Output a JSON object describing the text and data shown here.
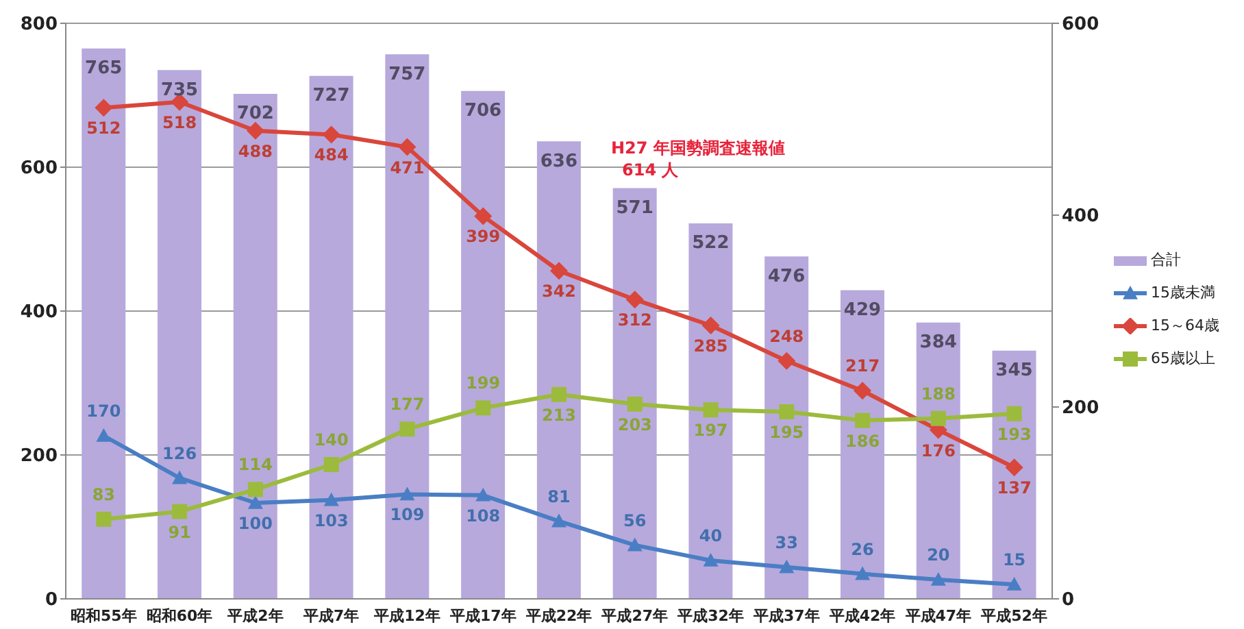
{
  "chart_data": {
    "type": "bar",
    "categories": [
      "昭和55年",
      "昭和60年",
      "平成2年",
      "平成7年",
      "平成12年",
      "平成17年",
      "平成22年",
      "平成27年",
      "平成32年",
      "平成37年",
      "平成42年",
      "平成47年",
      "平成52年"
    ],
    "series": [
      {
        "name": "合計",
        "color": "#b7a9dc",
        "values": [
          765,
          735,
          702,
          727,
          757,
          706,
          636,
          571,
          522,
          476,
          429,
          384,
          345
        ]
      },
      {
        "name": "15歳未満",
        "type": "line",
        "axis": "y2",
        "marker": "triangle",
        "color": "#4a7ec4",
        "values": [
          170,
          126,
          100,
          103,
          109,
          108,
          81,
          56,
          40,
          33,
          26,
          20,
          15
        ]
      },
      {
        "name": "15～64歳",
        "type": "line",
        "axis": "y2",
        "marker": "diamond",
        "color": "#d9463b",
        "values": [
          512,
          518,
          488,
          484,
          471,
          399,
          342,
          312,
          285,
          248,
          217,
          176,
          137
        ]
      },
      {
        "name": "65歳以上",
        "type": "line",
        "axis": "y2",
        "marker": "square",
        "color": "#9cbb3c",
        "values": [
          83,
          91,
          114,
          140,
          177,
          199,
          213,
          203,
          197,
          195,
          186,
          188,
          193
        ]
      }
    ],
    "ylim": [
      0,
      800
    ],
    "yticks": [
      0,
      200,
      400,
      600,
      800
    ],
    "y2lim": [
      0,
      600
    ],
    "y2ticks": [
      0,
      200,
      400,
      600
    ],
    "grid": "y",
    "legend": "right",
    "data_labels": true,
    "annotations": [
      "H27 年国勢調査速報値\n614 人"
    ]
  }
}
